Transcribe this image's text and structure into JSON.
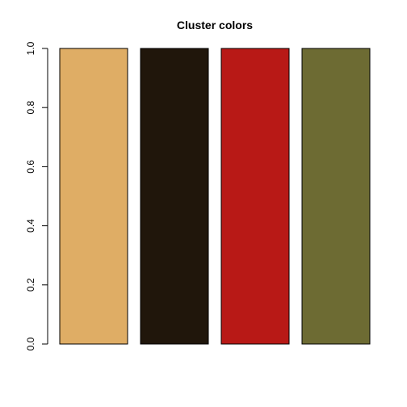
{
  "chart_data": {
    "type": "bar",
    "title": "Cluster colors",
    "categories": [
      "",
      "",
      "",
      ""
    ],
    "values": [
      1,
      1,
      1,
      1
    ],
    "colors": [
      "#dfad65",
      "#20160b",
      "#b81916",
      "#6d6b33"
    ],
    "ylim": [
      0,
      1
    ],
    "yticks": [
      0,
      0.2,
      0.4,
      0.6,
      0.8,
      1
    ],
    "ytick_labels": [
      "0.0",
      "0.2",
      "0.4",
      "0.6",
      "0.8",
      "1.0"
    ],
    "xlabel": "",
    "ylabel": "",
    "grid": false,
    "legend": "none"
  }
}
